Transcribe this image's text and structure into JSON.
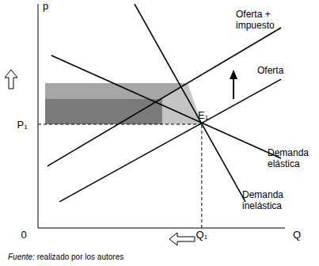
{
  "chart_data": {
    "type": "line",
    "x_label": "Q",
    "y_label": "p",
    "xlim": [
      0,
      10
    ],
    "ylim": [
      0,
      10
    ],
    "xticks": [
      0,
      {
        "value": 6.63,
        "label": "Q₁"
      }
    ],
    "yticks": [
      {
        "value": 4.63,
        "label": "P₁"
      }
    ],
    "tick_labels": true,
    "grid": false,
    "series": [
      {
        "name": "Oferta + impuesto",
        "color": "#000000",
        "x": [
          0.38,
          9.84
        ],
        "values": [
          2.76,
          8.94
        ]
      },
      {
        "name": "Oferta",
        "color": "#000000",
        "x": [
          0.87,
          9.84
        ],
        "values": [
          1.17,
          6.64
        ]
      },
      {
        "name": "Demanda elástica",
        "color": "#000000",
        "x": [
          0.54,
          9.84
        ],
        "values": [
          7.7,
          3.11
        ]
      },
      {
        "name": "Demanda inelástica",
        "color": "#000000",
        "x": [
          3.91,
          8.4
        ],
        "values": [
          10,
          1.17
        ]
      }
    ],
    "equilibrium": {
      "x": 6.63,
      "y": 4.63,
      "label": "E₁",
      "line_style": "dashed"
    },
    "shaded_bands": [
      {
        "x": [
          0.29,
          6.06
        ],
        "y": [
          5.76,
          6.47
        ],
        "color": "#a6a6a6"
      },
      {
        "x": [
          0.29,
          5.03
        ],
        "y": [
          4.63,
          5.76
        ],
        "color": "#7a7a7a"
      }
    ],
    "shaded_region": {
      "x": [
        5.03,
        6.06,
        6.63
      ],
      "low": [
        4.63,
        4.63,
        4.63
      ],
      "high": [
        5.76,
        6.47,
        4.63
      ],
      "color": "#c4c4c4"
    },
    "source_label": "Fuente:",
    "source_text": "realizado por los autores"
  }
}
